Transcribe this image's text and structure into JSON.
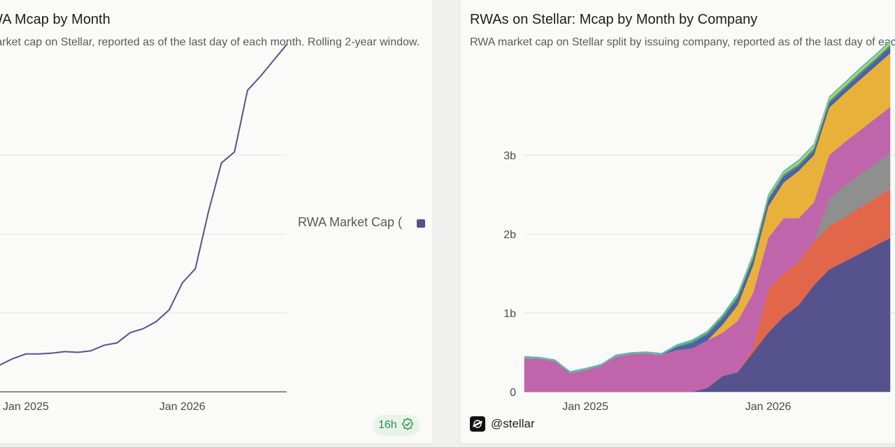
{
  "left_panel": {
    "title": "RWA Mcap by Month",
    "subtitle": "RWA market cap on Stellar, reported as of the last day of each month. Rolling 2-year window.",
    "legend_label": "RWA Market Cap (",
    "badge_text": "16h"
  },
  "right_panel": {
    "title": "RWAs on Stellar: Mcap by Month by Company",
    "subtitle": "RWA market cap on Stellar split by issuing company, reported as of the last day of each month.",
    "brand_handle": "@stellar"
  },
  "chart_data": [
    {
      "type": "line",
      "x_tick_labels": [
        "Jan 2025",
        "Jan 2026"
      ],
      "series": [
        {
          "name": "RWA Market Cap",
          "color": "#55528e",
          "x": [
            "2024-10",
            "2024-11",
            "2024-12",
            "2025-01",
            "2025-02",
            "2025-03",
            "2025-04",
            "2025-05",
            "2025-06",
            "2025-07",
            "2025-08",
            "2025-09",
            "2025-10",
            "2025-11",
            "2025-12",
            "2026-01",
            "2026-02",
            "2026-03",
            "2026-04",
            "2026-05",
            "2026-06",
            "2026-07",
            "2026-08",
            "2026-09"
          ],
          "values": [
            0.33,
            0.34,
            0.42,
            0.48,
            0.48,
            0.49,
            0.51,
            0.5,
            0.52,
            0.59,
            0.62,
            0.75,
            0.8,
            0.89,
            1.04,
            1.38,
            1.56,
            2.28,
            2.9,
            3.04,
            3.82,
            4.0,
            4.2,
            4.4
          ]
        }
      ]
    },
    {
      "type": "area",
      "stacked": true,
      "x": [
        "2024-09",
        "2024-10",
        "2024-11",
        "2024-12",
        "2025-01",
        "2025-02",
        "2025-03",
        "2025-04",
        "2025-05",
        "2025-06",
        "2025-07",
        "2025-08",
        "2025-09",
        "2025-10",
        "2025-11",
        "2025-12",
        "2026-01",
        "2026-02",
        "2026-03",
        "2026-04",
        "2026-05",
        "2026-06",
        "2026-07",
        "2026-08",
        "2026-09"
      ],
      "x_tick_labels": [
        "Jan 2025",
        "Jan 2026"
      ],
      "y_ticks": [
        0,
        1,
        2,
        3
      ],
      "y_tick_labels": [
        "0",
        "1b",
        "2b",
        "3b"
      ],
      "ylim": [
        0,
        4.0
      ],
      "series": [
        {
          "color": "#55528e",
          "values": [
            0,
            0,
            0,
            0,
            0,
            0,
            0,
            0,
            0,
            0,
            0,
            0,
            0.05,
            0.2,
            0.25,
            0.5,
            0.75,
            0.95,
            1.1,
            1.35,
            1.55,
            1.65,
            1.75,
            1.85,
            1.95
          ]
        },
        {
          "color": "#e2674a",
          "values": [
            0,
            0,
            0,
            0,
            0,
            0,
            0,
            0,
            0,
            0,
            0,
            0,
            0,
            0,
            0,
            0.05,
            0.55,
            0.55,
            0.55,
            0.55,
            0.55,
            0.56,
            0.58,
            0.6,
            0.62
          ]
        },
        {
          "color": "#8f8f8f",
          "values": [
            0,
            0,
            0,
            0,
            0,
            0,
            0,
            0,
            0,
            0,
            0,
            0,
            0,
            0,
            0,
            0,
            0,
            0,
            0,
            0,
            0.35,
            0.4,
            0.42,
            0.44,
            0.46
          ]
        },
        {
          "color": "#c065ac",
          "values": [
            0.43,
            0.42,
            0.39,
            0.24,
            0.28,
            0.33,
            0.45,
            0.48,
            0.49,
            0.47,
            0.53,
            0.55,
            0.6,
            0.55,
            0.65,
            0.7,
            0.65,
            0.7,
            0.55,
            0.5,
            0.55,
            0.55,
            0.56,
            0.57,
            0.58
          ]
        },
        {
          "color": "#e8b23a",
          "values": [
            0,
            0,
            0,
            0,
            0,
            0,
            0,
            0,
            0,
            0,
            0,
            0,
            0,
            0.1,
            0.2,
            0.35,
            0.4,
            0.45,
            0.6,
            0.6,
            0.6,
            0.62,
            0.64,
            0.66,
            0.68
          ]
        },
        {
          "color": "#4a63a8",
          "values": [
            0,
            0,
            0,
            0,
            0,
            0,
            0,
            0,
            0,
            0,
            0.04,
            0.07,
            0.08,
            0.08,
            0.09,
            0.08,
            0.08,
            0.08,
            0.06,
            0.06,
            0.06,
            0.06,
            0.07,
            0.07,
            0.08
          ]
        },
        {
          "color": "#5aa06c",
          "values": [
            0,
            0,
            0,
            0,
            0,
            0,
            0,
            0,
            0,
            0,
            0.01,
            0.02,
            0.02,
            0.03,
            0.03,
            0.03,
            0.03,
            0.03,
            0.03,
            0.03,
            0.03,
            0.03,
            0.03,
            0.03,
            0.03
          ]
        },
        {
          "color": "#b4d96f",
          "values": [
            0,
            0,
            0,
            0,
            0,
            0,
            0,
            0,
            0,
            0,
            0,
            0,
            0,
            0,
            0.01,
            0.02,
            0.02,
            0.02,
            0.03,
            0.03,
            0.03,
            0.03,
            0.03,
            0.03,
            0.03
          ]
        },
        {
          "color": "#5fb8b0",
          "values": [
            0.02,
            0.02,
            0.02,
            0.02,
            0.02,
            0.02,
            0.02,
            0.02,
            0.02,
            0.02,
            0.02,
            0.02,
            0.02,
            0.02,
            0.02,
            0.02,
            0.02,
            0.02,
            0.02,
            0.02,
            0.02,
            0.02,
            0.02,
            0.02,
            0.02
          ]
        }
      ]
    }
  ]
}
